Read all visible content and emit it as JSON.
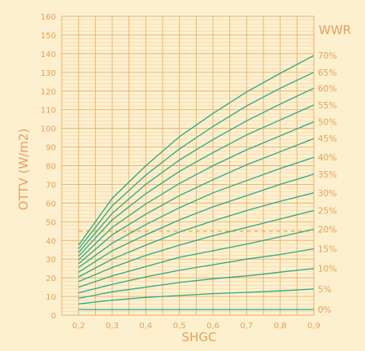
{
  "chart_data": {
    "type": "line",
    "xlabel": "SHGC",
    "ylabel": "OTTV (W/m2)",
    "legend_title": "WWR",
    "xlim": [
      0.15,
      0.9
    ],
    "ylim": [
      0,
      160
    ],
    "x_ticks": [
      "0,2",
      "0,3",
      "0,4",
      "0,5",
      "0,6",
      "0,7",
      "0,8",
      "0,9"
    ],
    "y_ticks": [
      "0",
      "10",
      "20",
      "30",
      "40",
      "50",
      "60",
      "70",
      "80",
      "90",
      "100",
      "110",
      "120",
      "130",
      "140",
      "150",
      "160"
    ],
    "x": [
      0.2,
      0.3,
      0.4,
      0.5,
      0.6,
      0.7,
      0.8,
      0.9
    ],
    "reference_line": {
      "y": 45,
      "style": "dashed"
    },
    "series": [
      {
        "name": "0%",
        "values": [
          3,
          3,
          3,
          3,
          3,
          3,
          3,
          3
        ]
      },
      {
        "name": "5%",
        "values": [
          6,
          8,
          9.5,
          10.5,
          11.5,
          12.2,
          13,
          14
        ]
      },
      {
        "name": "10%",
        "values": [
          9,
          12.5,
          15,
          17.5,
          19.5,
          21,
          23,
          25
        ]
      },
      {
        "name": "15%",
        "values": [
          12,
          16.5,
          20.5,
          24,
          27,
          30,
          32.5,
          35.5
        ]
      },
      {
        "name": "20%",
        "values": [
          15,
          21,
          26,
          31,
          34.5,
          38,
          42,
          46
        ]
      },
      {
        "name": "25%",
        "values": [
          18,
          25.5,
          32,
          37.5,
          42.5,
          47,
          51.5,
          56
        ]
      },
      {
        "name": "30%",
        "values": [
          20.5,
          30,
          37.5,
          44.5,
          50.5,
          56,
          61,
          65.5
        ]
      },
      {
        "name": "35%",
        "values": [
          23,
          34.5,
          43,
          51,
          58,
          64,
          70,
          75.5
        ]
      },
      {
        "name": "40%",
        "values": [
          25.5,
          38.5,
          48.5,
          57.5,
          65.5,
          72,
          78.5,
          84.5
        ]
      },
      {
        "name": "45%",
        "values": [
          27.5,
          43,
          54,
          64,
          72.5,
          80.5,
          87.5,
          94.5
        ]
      },
      {
        "name": "50%",
        "values": [
          29.5,
          47,
          59.5,
          70.5,
          80,
          88.5,
          96,
          103.5
        ]
      },
      {
        "name": "55%",
        "values": [
          31.5,
          51,
          65,
          77,
          87,
          96.5,
          104.5,
          112.5
        ]
      },
      {
        "name": "60%",
        "values": [
          33.5,
          54.5,
          70,
          83,
          94,
          104,
          113,
          121.5
        ]
      },
      {
        "name": "65%",
        "values": [
          35.5,
          58.5,
          75,
          89,
          101,
          112,
          121.5,
          130
        ]
      },
      {
        "name": "70%",
        "values": [
          37.5,
          62.5,
          80,
          95.5,
          108,
          119.5,
          129.5,
          139
        ]
      }
    ]
  },
  "colors": {
    "background": "#fdf0cf",
    "grid": "#e7b26c",
    "line": "#2aa98a",
    "reference": "#f0a43a",
    "label": "#e5a15a"
  }
}
